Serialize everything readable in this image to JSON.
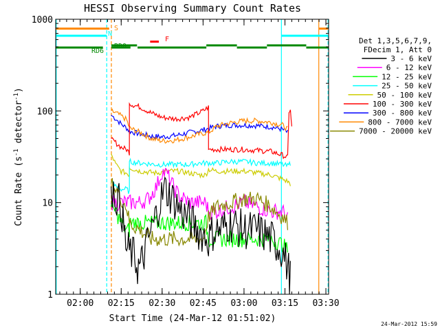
{
  "chart_data": {
    "type": "line",
    "title": "HESSI Observing Summary Count Rates",
    "xlabel": "Start Time (24-Mar-12 01:51:02)",
    "ylabel_main": "Count Rate (s",
    "ylabel_sup1": "-1",
    "ylabel_mid": " detector",
    "ylabel_sup2": "-1",
    "ylabel_end": ")",
    "yscale": "log",
    "ylim": [
      1,
      1000
    ],
    "xlim_min": [
      111,
      211
    ],
    "y_ticks": [
      {
        "value": 1,
        "label": "1"
      },
      {
        "value": 10,
        "label": "10"
      },
      {
        "value": 100,
        "label": "100"
      },
      {
        "value": 1000,
        "label": "1000"
      }
    ],
    "x_ticks": [
      {
        "value": 120,
        "label": "02:00"
      },
      {
        "value": 135,
        "label": "02:15"
      },
      {
        "value": 150,
        "label": "02:30"
      },
      {
        "value": 165,
        "label": "02:45"
      },
      {
        "value": 180,
        "label": "03:00"
      },
      {
        "value": 195,
        "label": "03:15"
      },
      {
        "value": 210,
        "label": "03:30"
      }
    ],
    "legend": {
      "position": "right",
      "header": [
        "Det 1,3,5,6,7,9,",
        "FDecim 1, Att 0"
      ],
      "entries": [
        {
          "label": "3 - 6 keV",
          "color": "#000000"
        },
        {
          "label": "6 - 12 keV",
          "color": "#ff00ff"
        },
        {
          "label": "12 - 25 keV",
          "color": "#00ff00"
        },
        {
          "label": "25 - 50 keV",
          "color": "#00ffff"
        },
        {
          "label": "50 - 100 keV",
          "color": "#cccc00"
        },
        {
          "label": "100 - 300 keV",
          "color": "#ff0000"
        },
        {
          "label": "300 - 800 keV",
          "color": "#0000ff"
        },
        {
          "label": "800 - 7000 keV",
          "color": "#ff8800"
        },
        {
          "label": "7000 - 20000 keV",
          "color": "#888800"
        }
      ]
    },
    "series": [
      {
        "name": "300 - 800 keV",
        "color": "#0000ff",
        "points": [
          [
            131.3,
            90
          ],
          [
            133,
            82
          ],
          [
            135,
            72
          ],
          [
            137,
            65
          ],
          [
            138,
            60
          ],
          [
            142,
            56
          ],
          [
            146,
            53
          ],
          [
            150,
            52
          ],
          [
            155,
            54
          ],
          [
            160,
            58
          ],
          [
            165,
            62
          ],
          [
            170,
            68
          ],
          [
            175,
            70
          ],
          [
            180,
            70
          ],
          [
            185,
            69
          ],
          [
            190,
            67
          ],
          [
            194,
            63
          ],
          [
            196,
            58
          ]
        ]
      },
      {
        "name": "800 - 7000 keV",
        "color": "#ff8800",
        "points": [
          [
            131.3,
            100
          ],
          [
            133,
            95
          ],
          [
            135,
            88
          ],
          [
            137,
            80
          ],
          [
            138,
            65
          ],
          [
            142,
            58
          ],
          [
            146,
            50
          ],
          [
            150,
            47
          ],
          [
            155,
            48
          ],
          [
            160,
            52
          ],
          [
            165,
            57
          ],
          [
            167,
            58
          ],
          [
            170,
            68
          ],
          [
            175,
            74
          ],
          [
            180,
            78
          ],
          [
            185,
            78
          ],
          [
            190,
            75
          ],
          [
            194,
            70
          ],
          [
            196,
            63
          ]
        ]
      },
      {
        "name": "100 - 300 keV",
        "color": "#ff0000",
        "points": [
          [
            131.3,
            50
          ],
          [
            133,
            45
          ],
          [
            135,
            40
          ],
          [
            137,
            38
          ],
          [
            138,
            35
          ],
          [
            138,
            120
          ],
          [
            142,
            110
          ],
          [
            146,
            95
          ],
          [
            150,
            85
          ],
          [
            155,
            82
          ],
          [
            160,
            85
          ],
          [
            165,
            100
          ],
          [
            167,
            110
          ],
          [
            167,
            38
          ],
          [
            170,
            38
          ],
          [
            175,
            38
          ],
          [
            180,
            38
          ],
          [
            185,
            37
          ],
          [
            190,
            36
          ],
          [
            194,
            33
          ],
          [
            196,
            31
          ],
          [
            196.5,
            100
          ],
          [
            197,
            100
          ],
          [
            197.5,
            65
          ]
        ]
      },
      {
        "name": "50 - 100 keV",
        "color": "#cccc00",
        "points": [
          [
            131.3,
            34
          ],
          [
            133,
            26
          ],
          [
            135,
            22
          ],
          [
            137,
            21
          ],
          [
            138,
            20
          ],
          [
            138,
            24
          ],
          [
            142,
            22
          ],
          [
            148,
            21
          ],
          [
            152,
            22
          ],
          [
            156,
            22
          ],
          [
            160,
            21
          ],
          [
            164,
            20
          ],
          [
            166,
            20
          ],
          [
            167,
            23
          ],
          [
            170,
            22
          ],
          [
            175,
            22
          ],
          [
            180,
            22
          ],
          [
            185,
            21
          ],
          [
            190,
            20
          ],
          [
            194,
            18
          ],
          [
            196,
            17
          ],
          [
            197,
            16
          ]
        ]
      },
      {
        "name": "25 - 50 keV",
        "color": "#00ffff",
        "points": [
          [
            131.3,
            17
          ],
          [
            133,
            15
          ],
          [
            135,
            14
          ],
          [
            137,
            14
          ],
          [
            138,
            13
          ],
          [
            138,
            28
          ],
          [
            142,
            27
          ],
          [
            148,
            26
          ],
          [
            152,
            26
          ],
          [
            156,
            26
          ],
          [
            160,
            26
          ],
          [
            164,
            27
          ],
          [
            166,
            27
          ],
          [
            167,
            27
          ],
          [
            170,
            27
          ],
          [
            175,
            28
          ],
          [
            180,
            28
          ],
          [
            185,
            27
          ],
          [
            190,
            27
          ],
          [
            194,
            26
          ],
          [
            196,
            25
          ],
          [
            197,
            27
          ]
        ]
      },
      {
        "name": "6 - 12 keV",
        "color": "#ff00ff",
        "points": [
          [
            131.3,
            10
          ],
          [
            133,
            10
          ],
          [
            135,
            10
          ],
          [
            137,
            10
          ],
          [
            138,
            10
          ],
          [
            142,
            10
          ],
          [
            145,
            11
          ],
          [
            148,
            15
          ],
          [
            150,
            22
          ],
          [
            152,
            20
          ],
          [
            154,
            15
          ],
          [
            156,
            12
          ],
          [
            160,
            10
          ],
          [
            164,
            10
          ],
          [
            166,
            10
          ],
          [
            167,
            8
          ],
          [
            170,
            8
          ],
          [
            175,
            9
          ],
          [
            180,
            10
          ],
          [
            185,
            9
          ],
          [
            190,
            8
          ],
          [
            194,
            8
          ],
          [
            196,
            7
          ]
        ]
      },
      {
        "name": "12 - 25 keV",
        "color": "#00ff00",
        "points": [
          [
            131.3,
            9
          ],
          [
            133,
            8
          ],
          [
            135,
            6
          ],
          [
            137,
            5
          ],
          [
            138,
            5
          ],
          [
            138,
            6
          ],
          [
            142,
            6
          ],
          [
            148,
            6
          ],
          [
            152,
            6
          ],
          [
            156,
            6
          ],
          [
            160,
            6
          ],
          [
            164,
            6
          ],
          [
            166,
            6
          ],
          [
            167,
            4
          ],
          [
            170,
            4
          ],
          [
            175,
            4
          ],
          [
            180,
            4
          ],
          [
            185,
            4
          ],
          [
            190,
            4
          ],
          [
            194,
            3.5
          ],
          [
            196,
            3
          ]
        ]
      },
      {
        "name": "7000 - 20000 keV",
        "color": "#888800",
        "points": [
          [
            131.3,
            16
          ],
          [
            133,
            14
          ],
          [
            135,
            11
          ],
          [
            137,
            9
          ],
          [
            138,
            6
          ],
          [
            142,
            5
          ],
          [
            146,
            4
          ],
          [
            150,
            4
          ],
          [
            155,
            4
          ],
          [
            160,
            4
          ],
          [
            165,
            4
          ],
          [
            167,
            7
          ],
          [
            170,
            9
          ],
          [
            175,
            10
          ],
          [
            180,
            11
          ],
          [
            185,
            11
          ],
          [
            190,
            9
          ],
          [
            194,
            7
          ],
          [
            196,
            6
          ]
        ]
      },
      {
        "name": "3 - 6 keV",
        "color": "#000000",
        "points": [
          [
            131.3,
            15
          ],
          [
            133,
            12
          ],
          [
            135,
            9
          ],
          [
            136,
            5
          ],
          [
            137,
            3
          ],
          [
            138,
            3
          ],
          [
            140,
            2.5
          ],
          [
            141,
            2
          ],
          [
            142,
            2
          ],
          [
            143,
            2.5
          ],
          [
            145,
            4
          ],
          [
            147,
            6
          ],
          [
            149,
            10
          ],
          [
            151,
            14
          ],
          [
            153,
            12
          ],
          [
            155,
            10
          ],
          [
            157,
            8
          ],
          [
            159,
            7
          ],
          [
            161,
            6
          ],
          [
            163,
            5
          ],
          [
            165,
            4.5
          ],
          [
            167,
            4
          ],
          [
            169,
            5
          ],
          [
            171,
            5
          ],
          [
            175,
            6
          ],
          [
            180,
            5
          ],
          [
            185,
            5
          ],
          [
            190,
            4
          ],
          [
            194,
            3
          ],
          [
            196,
            2
          ],
          [
            197,
            1.5
          ]
        ]
      }
    ],
    "status_bars": [
      {
        "label": "S",
        "color": "#ff8800",
        "label_color": "#ff8800",
        "segments": [
          [
            111,
            130.6
          ],
          [
            207.4,
            210.8
          ]
        ]
      },
      {
        "label": "N",
        "color": "#00ffff",
        "label_color": "#00ffff",
        "segments": [
          [
            111,
            129.7
          ],
          [
            193.7,
            210.8
          ]
        ]
      },
      {
        "label": "F",
        "color": "#ff0000",
        "label_color": "#ff0000",
        "segments": [
          [
            145.6,
            148.8
          ]
        ]
      },
      {
        "label": "RD0",
        "color": "#008800",
        "label_color": "#008800",
        "segments": [
          [
            131.4,
            140.8
          ],
          [
            166.2,
            177.4
          ],
          [
            188.4,
            202.8
          ]
        ]
      },
      {
        "label": "RD6",
        "color": "#008800",
        "label_color": "#008800",
        "segments": [
          [
            111,
            128.3
          ],
          [
            131.4,
            138.4
          ],
          [
            141.0,
            166.2
          ],
          [
            177.4,
            188.4
          ],
          [
            202.8,
            211
          ]
        ]
      }
    ],
    "vertical_lines": [
      {
        "x": 111.2,
        "color": "#00ffff",
        "style": "solid"
      },
      {
        "x": 129.7,
        "color": "#00ffff",
        "style": "dashed"
      },
      {
        "x": 131.4,
        "color": "#ff8800",
        "style": "dashed"
      },
      {
        "x": 193.7,
        "color": "#00ffff",
        "style": "solid"
      },
      {
        "x": 207.4,
        "color": "#ff8800",
        "style": "solid"
      },
      {
        "x": 210.8,
        "color": "#00ffff",
        "style": "dashed"
      }
    ]
  },
  "footer_date": "24-Mar-2012 15:59"
}
